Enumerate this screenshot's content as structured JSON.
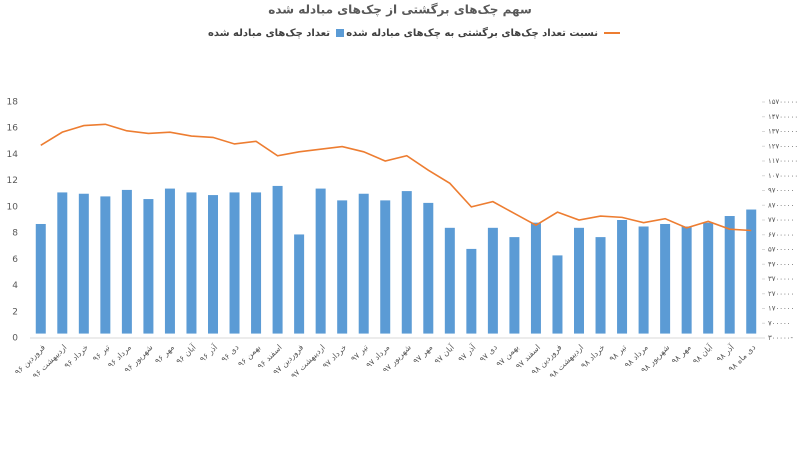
{
  "chart_data": {
    "type": "combo",
    "title": "سهم چک‌های برگشتی از چک‌های مبادله شده",
    "categories": [
      "فروردین ۹۶",
      "اردیبهشت ۹۶",
      "خرداد ۹۶",
      "تیر ۹۶",
      "مرداد ۹۶",
      "شهریور ۹۶",
      "مهر ۹۶",
      "آبان ۹۶",
      "آذر ۹۶",
      "دی ۹۶",
      "بهمن ۹۶",
      "اسفند ۹۶",
      "فروردین ۹۷",
      "اردیبهشت ۹۷",
      "خرداد ۹۷",
      "تیر ۹۷",
      "مرداد ۹۷",
      "شهریور ۹۷",
      "مهر ۹۷",
      "آبان ۹۷",
      "آذر ۹۷",
      "دی ۹۷",
      "بهمن ۹۷",
      "اسفند ۹۷",
      "فروردین ۹۸",
      "اردیبهشت ۹۸",
      "خرداد ۹۸",
      "تیر ۹۸",
      "مرداد ۹۸",
      "شهریور ۹۸",
      "مهر ۹۸",
      "آبان ۹۸",
      "آذر ۹۸",
      "دی ماه ۹۸"
    ],
    "series": [
      {
        "name": "تعداد چک‌های مبادله شده",
        "type": "bar",
        "axis": "y2",
        "color": "#5b9bd5",
        "values": [
          7430000,
          9570000,
          9480000,
          9300000,
          9740000,
          9120000,
          9830000,
          9570000,
          9390000,
          9570000,
          9570000,
          10010000,
          6720000,
          9830000,
          9030000,
          9480000,
          9030000,
          9660000,
          8860000,
          7170000,
          5740000,
          7170000,
          6540000,
          7520000,
          5300000,
          7170000,
          6540000,
          7700000,
          7260000,
          7430000,
          7260000,
          7520000,
          7970000,
          8410000
        ]
      },
      {
        "name": "نسبت تعداد چک‌های برگشتی به چک‌های مبادله شده",
        "type": "line",
        "color": "#ed7d31",
        "values": [
          14.7,
          15.7,
          16.2,
          16.3,
          15.8,
          15.6,
          15.7,
          15.4,
          15.3,
          14.8,
          15.0,
          13.9,
          14.2,
          14.4,
          14.6,
          14.2,
          13.5,
          13.9,
          12.8,
          11.8,
          10.0,
          10.4,
          9.5,
          8.6,
          9.6,
          9.0,
          9.3,
          9.2,
          8.8,
          9.1,
          8.4,
          8.9,
          8.3,
          8.2
        ]
      }
    ],
    "ylim": [
      0,
      18
    ],
    "yticks": [
      0,
      2,
      4,
      6,
      8,
      10,
      12,
      14,
      16,
      18
    ],
    "y2lim": [
      -300000,
      15700000
    ],
    "y2ticks": [
      {
        "value": -300000,
        "label": "۳۰۰۰۰۰-"
      },
      {
        "value": 700000,
        "label": "۷۰۰۰۰۰"
      },
      {
        "value": 1700000,
        "label": "۱۷۰۰۰۰۰"
      },
      {
        "value": 2700000,
        "label": "۲۷۰۰۰۰۰"
      },
      {
        "value": 3700000,
        "label": "۳۷۰۰۰۰۰"
      },
      {
        "value": 4700000,
        "label": "۴۷۰۰۰۰۰"
      },
      {
        "value": 5700000,
        "label": "۵۷۰۰۰۰۰"
      },
      {
        "value": 6700000,
        "label": "۶۷۰۰۰۰۰"
      },
      {
        "value": 7700000,
        "label": "۷۷۰۰۰۰۰"
      },
      {
        "value": 8700000,
        "label": "۸۷۰۰۰۰۰"
      },
      {
        "value": 9700000,
        "label": "۹۷۰۰۰۰۰"
      },
      {
        "value": 10700000,
        "label": "۱۰۷۰۰۰۰۰"
      },
      {
        "value": 11700000,
        "label": "۱۱۷۰۰۰۰۰"
      },
      {
        "value": 12700000,
        "label": "۱۲۷۰۰۰۰۰"
      },
      {
        "value": 13700000,
        "label": "۱۳۷۰۰۰۰۰"
      },
      {
        "value": 14700000,
        "label": "۱۴۷۰۰۰۰۰"
      },
      {
        "value": 15700000,
        "label": "۱۵۷۰۰۰۰۰"
      }
    ],
    "grid": false
  }
}
